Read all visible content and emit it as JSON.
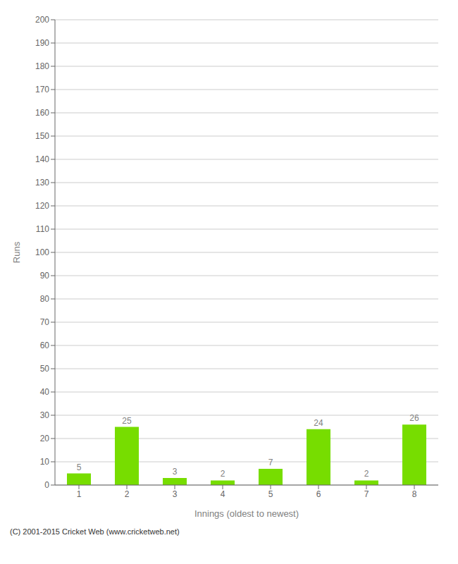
{
  "chart_data": {
    "type": "bar",
    "categories": [
      "1",
      "2",
      "3",
      "4",
      "5",
      "6",
      "7",
      "8"
    ],
    "values": [
      5,
      25,
      3,
      2,
      7,
      24,
      2,
      26
    ],
    "color": "#77dd00",
    "xlabel": "Innings (oldest to newest)",
    "ylabel": "Runs",
    "ylim": [
      0,
      200
    ],
    "yticks": [
      0,
      10,
      20,
      30,
      40,
      50,
      60,
      70,
      80,
      90,
      100,
      110,
      120,
      130,
      140,
      150,
      160,
      170,
      180,
      190,
      200
    ],
    "grid": true,
    "data_labels": true,
    "annotations": [
      "(C) 2001-2015 Cricket Web (www.cricketweb.net)"
    ]
  }
}
